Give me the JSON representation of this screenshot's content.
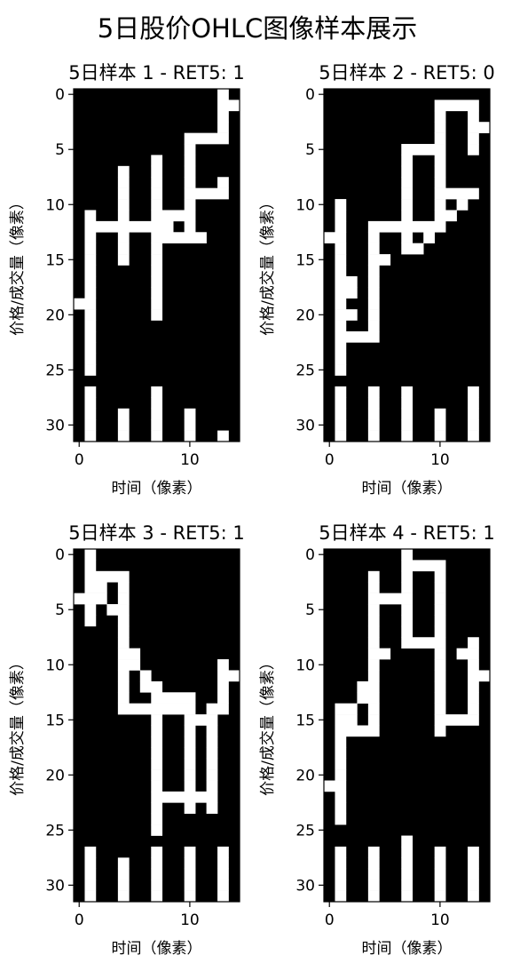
{
  "figure": {
    "title": "5日股价OHLC图像样本展示"
  },
  "chart_data": [
    {
      "type": "heatmap",
      "title": "5日样本 1 - RET5: 1",
      "xlabel": "时间（像素）",
      "ylabel": "价格/成交量（像素）",
      "xlim": [
        -0.5,
        14.5
      ],
      "ylim": [
        31.5,
        -0.5
      ],
      "xticks": [
        "0",
        "10"
      ],
      "yticks": [
        "0",
        "5",
        "10",
        "15",
        "20",
        "25",
        "30"
      ],
      "colormap": {
        "0": "#000000",
        "1": "#ffffff"
      },
      "grid": false,
      "rows": [
        "000000000000010",
        "000000000000011",
        "000000000000010",
        "000000000000010",
        "000000000011110",
        "000000000010000",
        "000000010010000",
        "000010010010000",
        "000010010010010",
        "000010010011110",
        "000010010010000",
        "010010011110000",
        "011111111010000",
        "010010011111000",
        "010010010000000",
        "010010010000000",
        "010000010000000",
        "010000010000000",
        "010000010000000",
        "110000010000000",
        "010000010000000",
        "010000000000000",
        "010000000000000",
        "010000000000000",
        "010000000000000",
        "010000000000000",
        "000000000000000",
        "010000010000000",
        "010000010000000",
        "010010010010000",
        "010010010010000",
        "010010010010010"
      ]
    },
    {
      "type": "heatmap",
      "title": "5日样本 2 - RET5: 0",
      "xlabel": "时间（像素）",
      "ylabel": "价格/成交量（像素）",
      "xlim": [
        -0.5,
        14.5
      ],
      "ylim": [
        31.5,
        -0.5
      ],
      "xticks": [
        "0",
        "10"
      ],
      "yticks": [
        "0",
        "5",
        "10",
        "15",
        "20",
        "25",
        "30"
      ],
      "colormap": {
        "0": "#000000",
        "1": "#ffffff"
      },
      "grid": false,
      "rows": [
        "000000000000000",
        "000000000011110",
        "000000000010010",
        "000000000010011",
        "000000000010010",
        "000000011110010",
        "000000010010000",
        "000000010010000",
        "000000010010000",
        "000000010011110",
        "010000010010100",
        "010000010011000",
        "010011111110000",
        "110010010100000",
        "010010011000000",
        "010011000000000",
        "010010000000000",
        "011010000000000",
        "011010000000000",
        "010010000000000",
        "011010000000000",
        "010010000000000",
        "011110000000000",
        "010000000000000",
        "010000000000000",
        "010000000000000",
        "000000000000000",
        "010010010000010",
        "010010010000010",
        "010010010010010",
        "010010010010010",
        "010010010010010"
      ]
    },
    {
      "type": "heatmap",
      "title": "5日样本 3 - RET5: 1",
      "xlabel": "时间（像素）",
      "ylabel": "价格/成交量（像素）",
      "xlim": [
        -0.5,
        14.5
      ],
      "ylim": [
        31.5,
        -0.5
      ],
      "xticks": [
        "0",
        "10"
      ],
      "yticks": [
        "0",
        "5",
        "10",
        "15",
        "20",
        "25",
        "30"
      ],
      "colormap": {
        "0": "#000000",
        "1": "#ffffff"
      },
      "grid": false,
      "rows": [
        "010000000000000",
        "010000000000000",
        "011110000000000",
        "011010000000000",
        "111010000000000",
        "010110000000000",
        "010010000000000",
        "000010000000000",
        "000010000000000",
        "000011000000000",
        "000011000000010",
        "000010100000011",
        "000010110000010",
        "000010011110010",
        "000011111110110",
        "000000010011100",
        "000000010010100",
        "000000010010100",
        "000000010010100",
        "000000010010100",
        "000000010010100",
        "000000010010100",
        "000000011111100",
        "000000010010100",
        "000000010000000",
        "000000010000000",
        "000000000000000",
        "010000010010010",
        "010010010010010",
        "010010010010010",
        "010010010010010",
        "010010010010010"
      ]
    },
    {
      "type": "heatmap",
      "title": "5日样本 4 - RET5: 1",
      "xlabel": "时间（像素）",
      "ylabel": "价格/成交量（像素）",
      "xlim": [
        -0.5,
        14.5
      ],
      "ylim": [
        31.5,
        -0.5
      ],
      "xticks": [
        "0",
        "10"
      ],
      "yticks": [
        "0",
        "5",
        "10",
        "15",
        "20",
        "25",
        "30"
      ],
      "colormap": {
        "0": "#000000",
        "1": "#ffffff"
      },
      "grid": false,
      "rows": [
        "000000010000000",
        "000000011110000",
        "000010010010000",
        "000010010010000",
        "000011110010000",
        "000010010010000",
        "000010010010000",
        "000010010010000",
        "000010011110010",
        "000011000010110",
        "000010000010010",
        "000010000010011",
        "000110000010010",
        "000110000010010",
        "011010000010010",
        "011010000011110",
        "011110000010000",
        "010000000000000",
        "010000000000000",
        "010000000000000",
        "010000000000000",
        "110000000000000",
        "010000000000000",
        "010000000000000",
        "010000000000000",
        "000000000000000",
        "000000010000000",
        "010010010010010",
        "010010010010010",
        "010010010010010",
        "010010010010010",
        "010010010010010"
      ]
    }
  ]
}
